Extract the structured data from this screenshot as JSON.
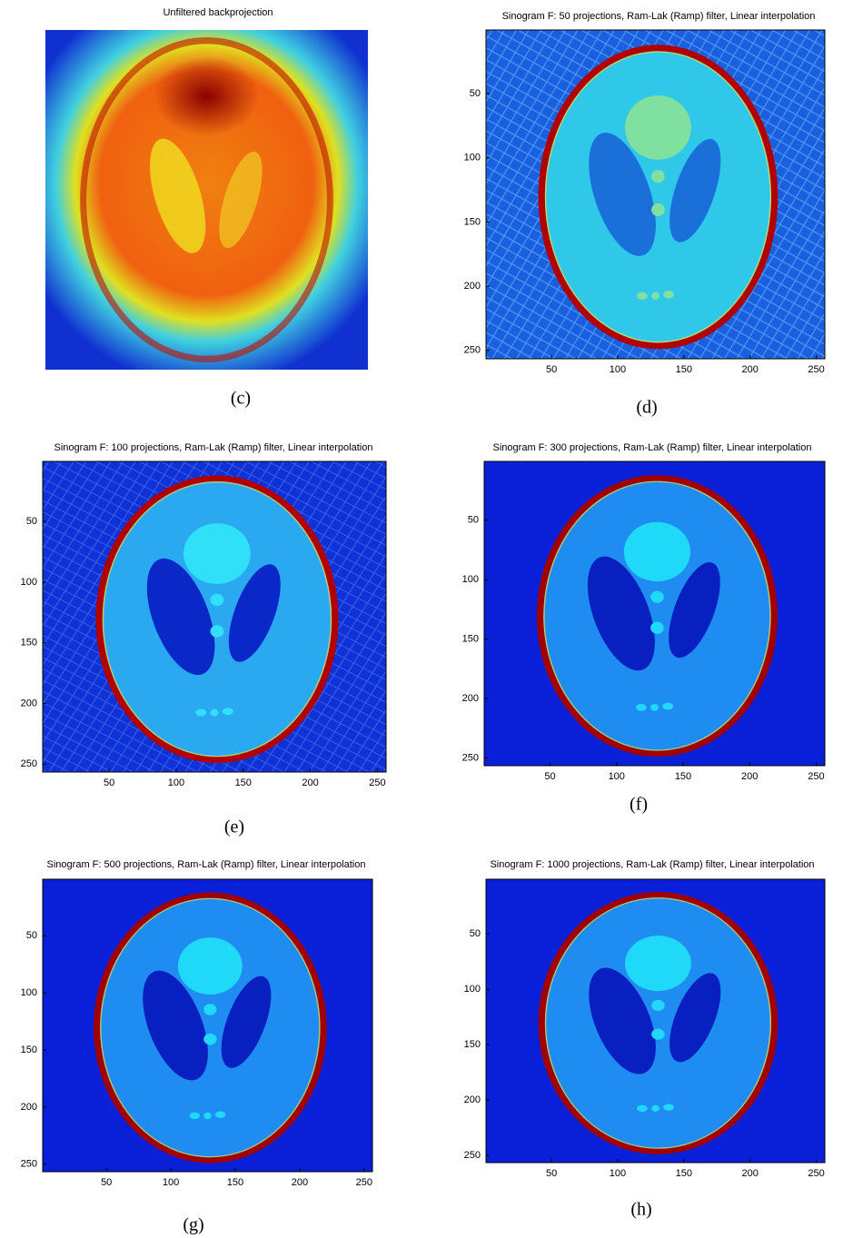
{
  "panels": [
    {
      "title": "Unfiltered backprojection",
      "caption": "(c)"
    },
    {
      "title": "Sinogram F: 50 projections, Ram-Lak (Ramp) filter, Linear interpolation",
      "caption": "(d)",
      "xlim": [
        0.5,
        256.5
      ],
      "ylim": [
        0.5,
        256.5
      ],
      "xticks": [
        50,
        100,
        150,
        200,
        250
      ],
      "yticks": [
        50,
        100,
        150,
        200,
        250
      ]
    },
    {
      "title": "Sinogram F: 100 projections, Ram-Lak (Ramp) filter, Linear interpolation",
      "caption": "(e)",
      "xlim": [
        0.5,
        256.5
      ],
      "ylim": [
        0.5,
        256.5
      ],
      "xticks": [
        50,
        100,
        150,
        200,
        250
      ],
      "yticks": [
        50,
        100,
        150,
        200,
        250
      ]
    },
    {
      "title": "Sinogram F: 300 projections, Ram-Lak (Ramp) filter, Linear interpolation",
      "caption": "(f)",
      "xlim": [
        0.5,
        256.5
      ],
      "ylim": [
        0.5,
        256.5
      ],
      "xticks": [
        50,
        100,
        150,
        200,
        250
      ],
      "yticks": [
        50,
        100,
        150,
        200,
        250
      ]
    },
    {
      "title": "Sinogram F: 500 projections, Ram-Lak (Ramp) filter, Linear interpolation",
      "caption": "(g)",
      "xlim": [
        0.5,
        256.5
      ],
      "ylim": [
        0.5,
        256.5
      ],
      "xticks": [
        50,
        100,
        150,
        200,
        250
      ],
      "yticks": [
        50,
        100,
        150,
        200,
        250
      ]
    },
    {
      "title": "Sinogram F: 1000 projections, Ram-Lak (Ramp) filter, Linear interpolation",
      "caption": "(h)",
      "xlim": [
        0.5,
        256.5
      ],
      "ylim": [
        0.5,
        256.5
      ],
      "xticks": [
        50,
        100,
        150,
        200,
        250
      ],
      "yticks": [
        50,
        100,
        150,
        200,
        250
      ]
    }
  ]
}
